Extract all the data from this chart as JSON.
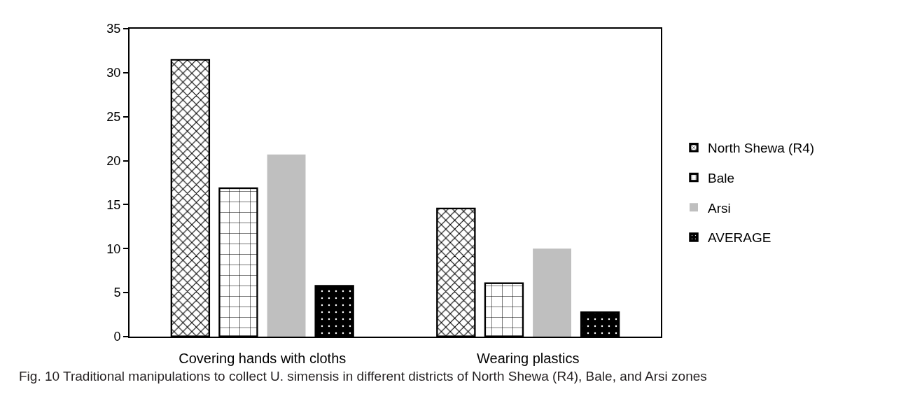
{
  "chart_data": {
    "type": "bar",
    "categories": [
      "Covering hands with cloths",
      "Wearing plastics"
    ],
    "series": [
      {
        "name": "North Shewa (R4)",
        "color": "#000000",
        "values": [
          31.5,
          14.6
        ]
      },
      {
        "name": "Bale",
        "color": "#000000",
        "values": [
          16.9,
          6.1
        ]
      },
      {
        "name": "Arsi",
        "color": "#bfbfbf",
        "values": [
          20.7,
          10.0
        ]
      },
      {
        "name": "AVERAGE",
        "color": "#000000",
        "values": [
          5.8,
          2.8
        ]
      }
    ],
    "ylim": [
      0,
      35
    ],
    "yticks": [
      0,
      5,
      10,
      15,
      20,
      25,
      30,
      35
    ],
    "grid": false,
    "legend": "right",
    "annotations": [
      "Fig. 10 Traditional manipulations to collect U. simensis in different districts of North Shewa (R4), Bale, and Arsi zones"
    ]
  }
}
